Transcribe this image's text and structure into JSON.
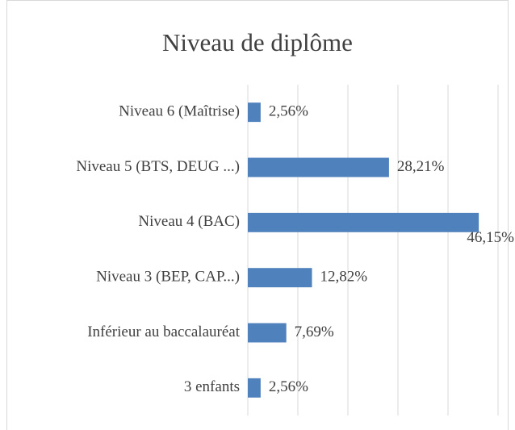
{
  "chart_data": {
    "type": "barh",
    "title": "Niveau de diplôme",
    "categories": [
      "Niveau 6 (Maîtrise)",
      "Niveau 5 (BTS, DEUG ...)",
      "Niveau 4 (BAC)",
      "Niveau 3 (BEP, CAP...)",
      "Inférieur au baccalauréat",
      "3 enfants"
    ],
    "values": [
      2.56,
      28.21,
      46.15,
      12.82,
      7.69,
      2.56
    ],
    "value_labels": [
      "2,56%",
      "28,21%",
      "46,15%",
      "12,82%",
      "7,69%",
      "2,56%"
    ],
    "color": "#4f81bd",
    "xlim": [
      0,
      50
    ],
    "xticks": [
      0,
      10,
      20,
      30,
      40,
      50
    ],
    "grid": true,
    "tick_labels": false
  }
}
